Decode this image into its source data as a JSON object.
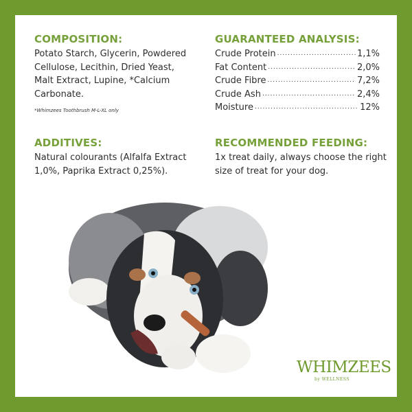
{
  "colors": {
    "border": "#6f9a2e",
    "heading": "#76a03a",
    "text": "#2e2e2e"
  },
  "composition": {
    "title": "COMPOSITION:",
    "lines": [
      "Potato Starch, Glycerin, Powdered",
      "Cellulose, Lecithin, Dried Yeast,",
      "Malt Extract, Lupine, *Calcium",
      "Carbonate."
    ],
    "note": "*Whimzees Toothbrush M-L-XL only"
  },
  "analysis": {
    "title": "GUARANTEED ANALYSIS:",
    "rows": [
      {
        "label": "Crude Protein",
        "value": "1,1%"
      },
      {
        "label": "Fat Content",
        "value": "2,0%"
      },
      {
        "label": "Crude Fibre",
        "value": "7,2%"
      },
      {
        "label": "Crude Ash",
        "value": "2,4%"
      },
      {
        "label": "Moisture",
        "value": "12%"
      }
    ]
  },
  "additives": {
    "title": "ADDITIVES:",
    "lines": [
      "Natural colourants (Alfalfa Extract",
      "1,0%, Paprika Extract 0,25%)."
    ]
  },
  "feeding": {
    "title": "RECOMMENDED FEEDING:",
    "lines": [
      "1x treat daily, always choose the right",
      "size of treat for your dog."
    ]
  },
  "logo": {
    "brand": "WHIMZEES",
    "sub": "by WELLNESS"
  }
}
